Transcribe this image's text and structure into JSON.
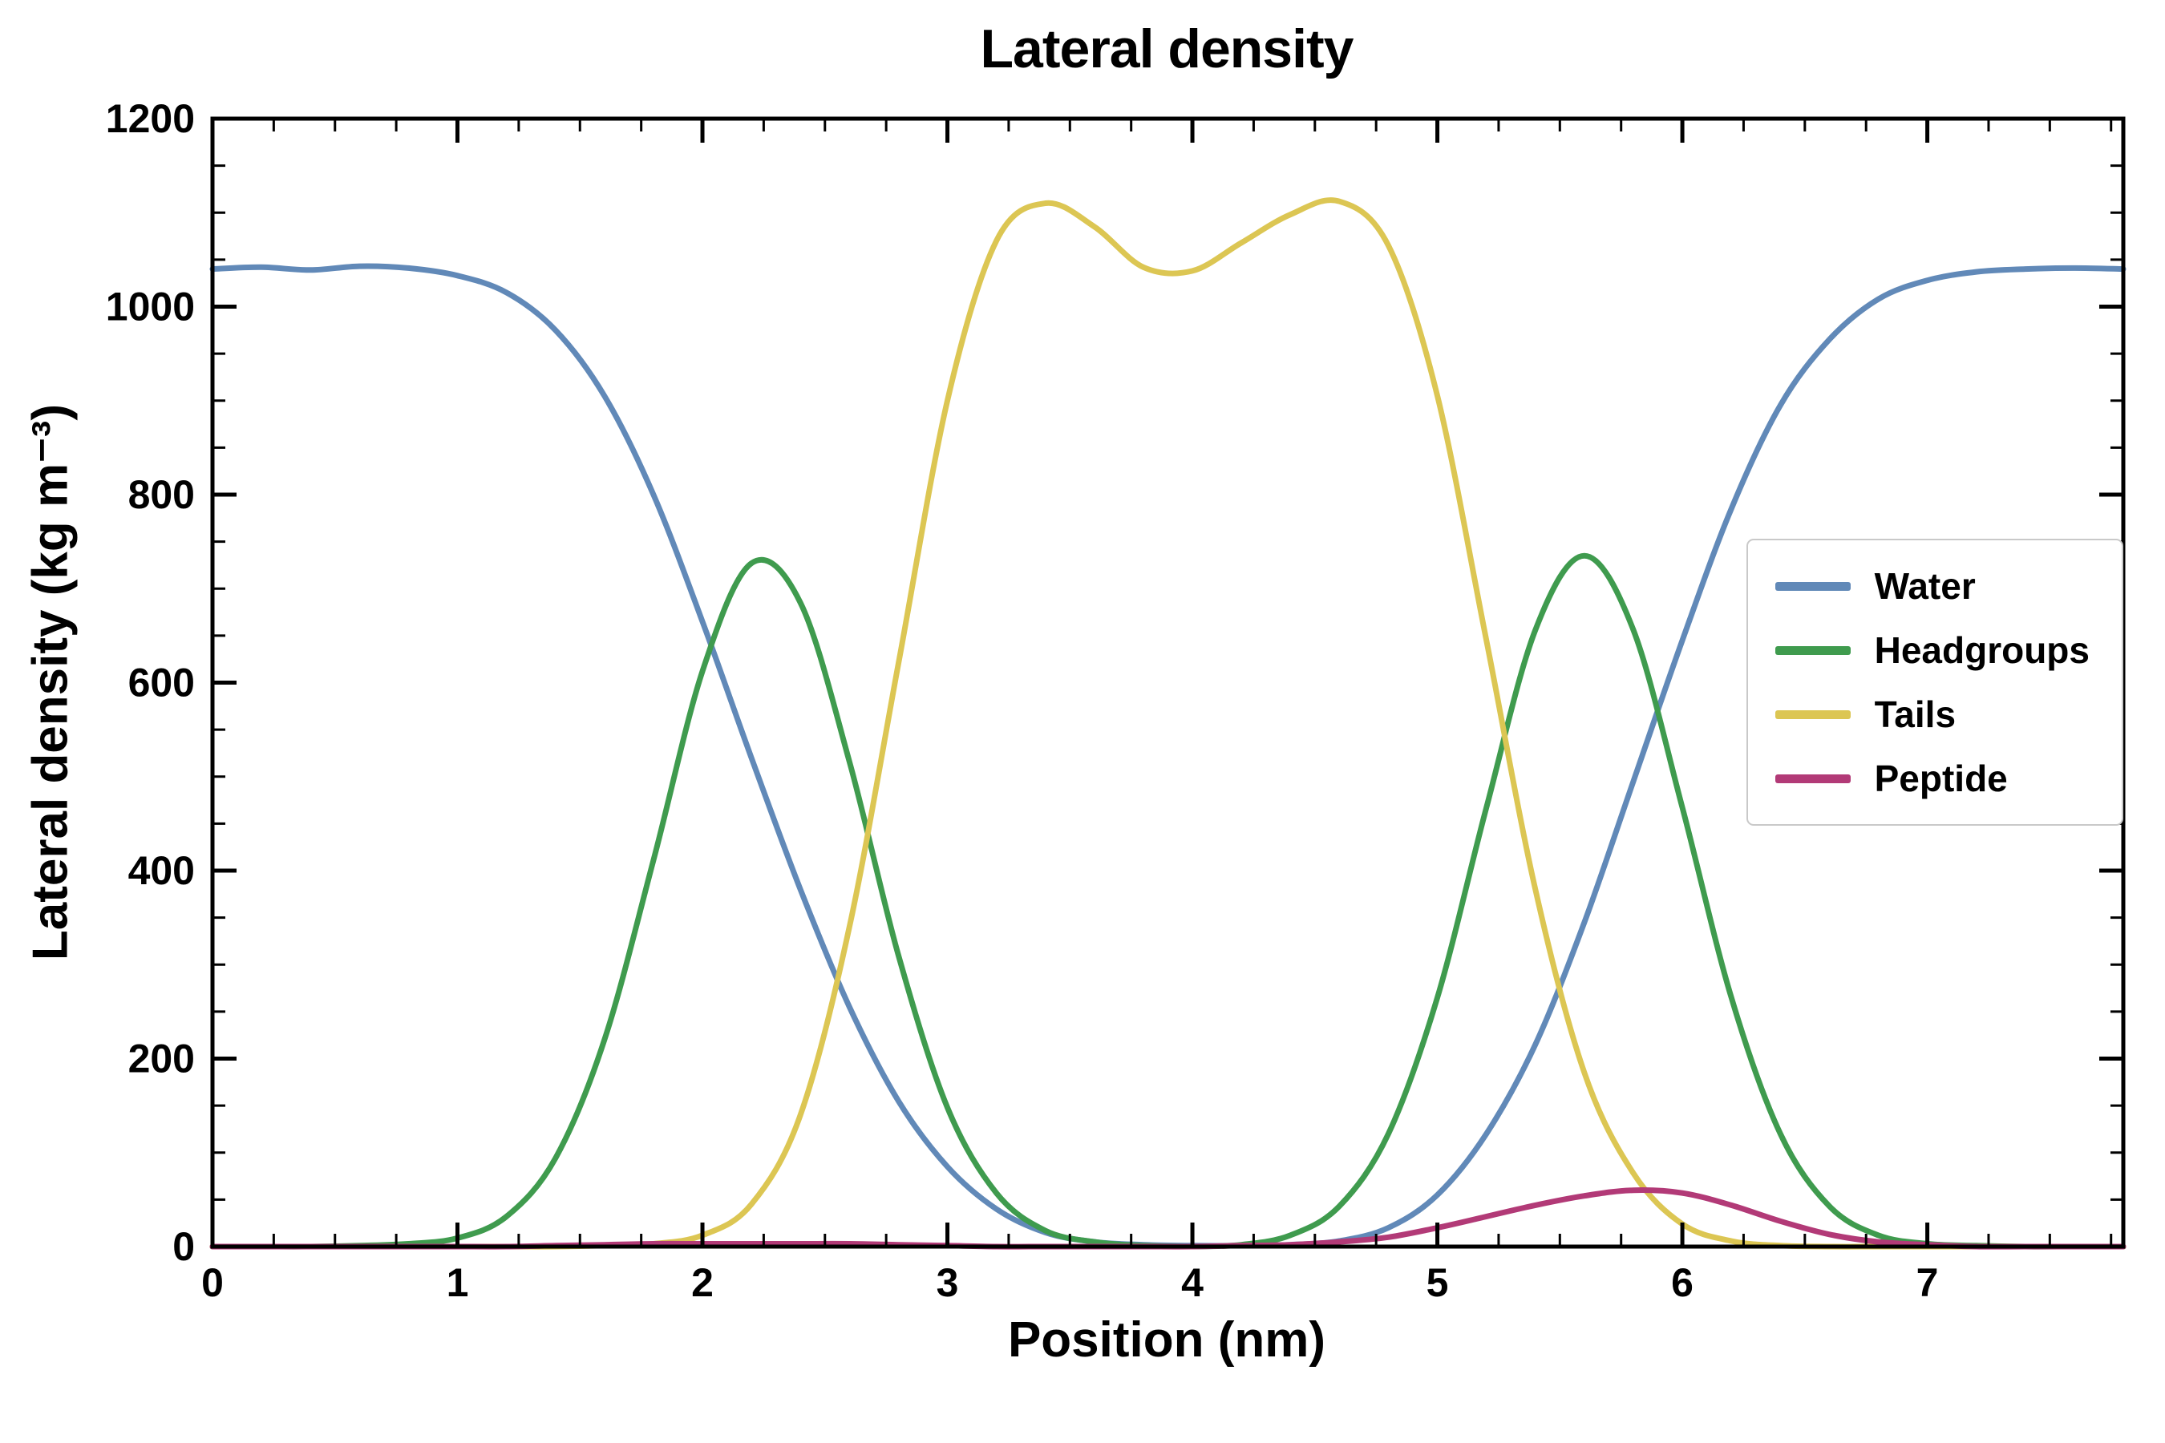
{
  "title": "Lateral density",
  "axes": {
    "xlabel": "Position (nm)",
    "ylabel": "Lateral density (kg m⁻³)",
    "xlim": [
      0,
      7.8
    ],
    "ylim": [
      0,
      1200
    ],
    "x_major_ticks": [
      0,
      1,
      2,
      3,
      4,
      5,
      6,
      7
    ],
    "x_minor_step": 0.25,
    "y_major_ticks": [
      0,
      200,
      400,
      600,
      800,
      1000,
      1200
    ],
    "y_minor_step": 50
  },
  "legend": {
    "position": "center-right",
    "entries": [
      "Water",
      "Headgroups",
      "Tails",
      "Peptide"
    ]
  },
  "chart_data": {
    "type": "line",
    "title": "Lateral density",
    "xlabel": "Position (nm)",
    "ylabel": "Lateral density (kg m⁻³)",
    "xlim": [
      0,
      7.8
    ],
    "ylim": [
      0,
      1200
    ],
    "grid": false,
    "legend_position": "center-right",
    "x": [
      0.0,
      0.2,
      0.4,
      0.6,
      0.8,
      1.0,
      1.2,
      1.4,
      1.6,
      1.8,
      2.0,
      2.2,
      2.4,
      2.6,
      2.8,
      3.0,
      3.2,
      3.4,
      3.6,
      3.8,
      4.0,
      4.2,
      4.4,
      4.6,
      4.8,
      5.0,
      5.2,
      5.4,
      5.6,
      5.8,
      6.0,
      6.2,
      6.4,
      6.6,
      6.8,
      7.0,
      7.2,
      7.4,
      7.6,
      7.8
    ],
    "series": [
      {
        "name": "Water",
        "color": "#6189b8",
        "values": [
          1040,
          1042,
          1039,
          1043,
          1041,
          1033,
          1015,
          975,
          905,
          800,
          665,
          520,
          380,
          255,
          155,
          85,
          40,
          15,
          5,
          2,
          1,
          1,
          2,
          6,
          20,
          55,
          120,
          215,
          345,
          495,
          645,
          785,
          895,
          965,
          1008,
          1028,
          1037,
          1040,
          1041,
          1040
        ]
      },
      {
        "name": "Headgroups",
        "color": "#3f9b4e",
        "values": [
          0,
          0,
          0,
          1,
          3,
          9,
          32,
          94,
          220,
          411,
          612,
          727,
          685,
          516,
          310,
          148,
          57,
          17,
          5,
          1,
          0,
          2,
          12,
          43,
          120,
          265,
          467,
          656,
          735,
          656,
          467,
          265,
          120,
          43,
          12,
          3,
          1,
          0,
          0,
          0
        ]
      },
      {
        "name": "Tails",
        "color": "#dcc653",
        "values": [
          0,
          0,
          0,
          0,
          0,
          0,
          0,
          0,
          1,
          3,
          12,
          45,
          140,
          340,
          620,
          900,
          1070,
          1110,
          1085,
          1042,
          1038,
          1068,
          1098,
          1112,
          1065,
          905,
          645,
          380,
          185,
          78,
          24,
          6,
          1,
          0,
          0,
          0,
          0,
          0,
          0,
          0
        ]
      },
      {
        "name": "Peptide",
        "color": "#b23a77",
        "values": [
          0,
          0,
          0,
          0,
          0,
          0,
          0,
          1,
          2,
          3,
          3,
          3,
          3,
          3,
          2,
          1,
          0,
          0,
          0,
          0,
          0,
          1,
          2,
          5,
          10,
          20,
          32,
          44,
          54,
          60,
          57,
          44,
          27,
          13,
          5,
          2,
          0,
          0,
          0,
          0
        ]
      }
    ]
  }
}
